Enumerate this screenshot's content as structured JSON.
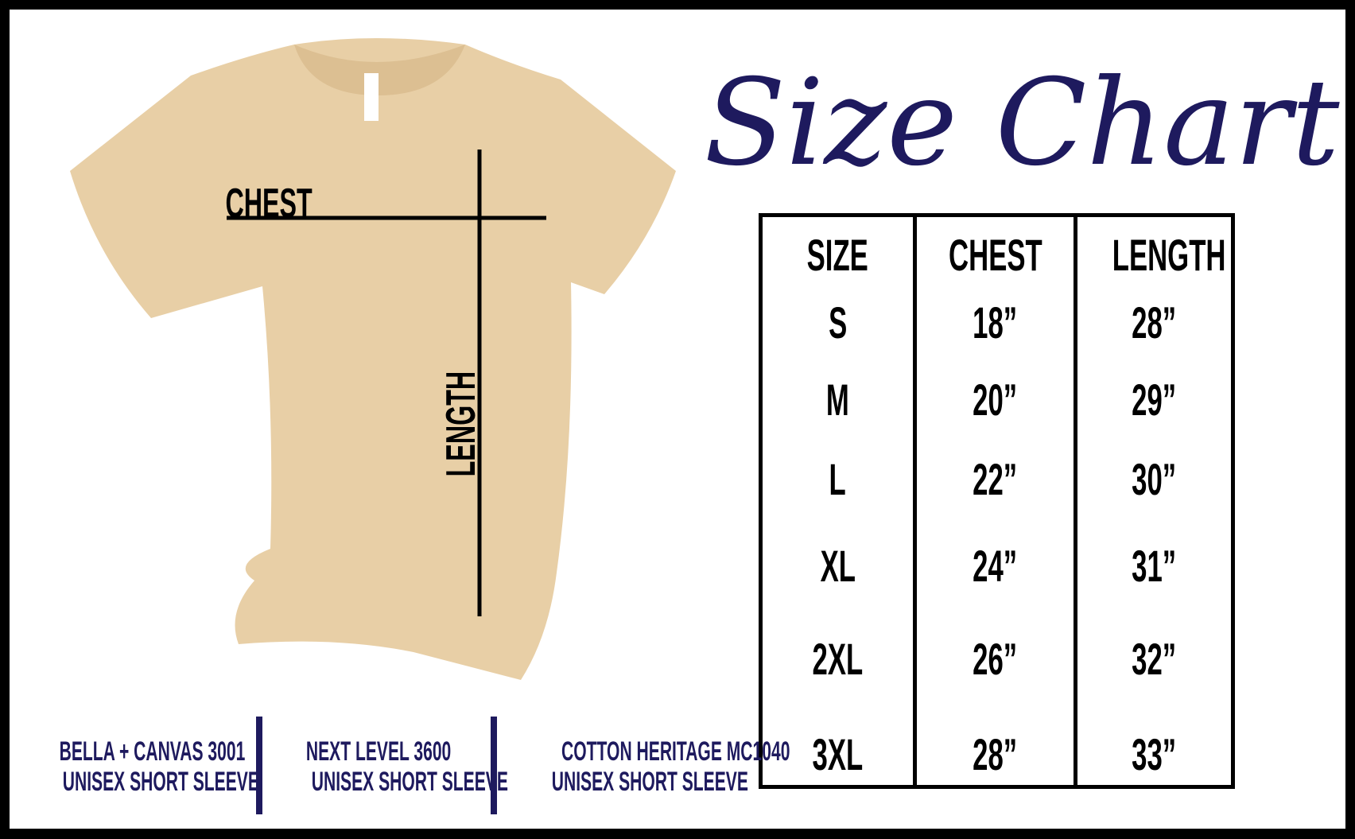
{
  "title": "Size Chart",
  "colors": {
    "accent": "#1e1a5e",
    "shirt": "#e8cfa6",
    "border": "#000000"
  },
  "shirt": {
    "chest_label": "CHEST",
    "length_label": "LENGTH"
  },
  "table": {
    "headers": [
      "SIZE",
      "CHEST",
      "LENGTH"
    ],
    "rows": [
      [
        "S",
        "18”",
        "28”"
      ],
      [
        "M",
        "20”",
        "29”"
      ],
      [
        "L",
        "22”",
        "30”"
      ],
      [
        "XL",
        "24”",
        "31”"
      ],
      [
        "2XL",
        "26”",
        "32”"
      ],
      [
        "3XL",
        "28”",
        "33”"
      ]
    ]
  },
  "brands": [
    {
      "name": "BELLA + CANVAS 3001",
      "style": "UNISEX SHORT SLEEVE"
    },
    {
      "name": "NEXT LEVEL 3600",
      "style": "UNISEX SHORT SLEEVE"
    },
    {
      "name": "COTTON HERITAGE MC1040",
      "style": "UNISEX SHORT SLEEVE"
    }
  ]
}
